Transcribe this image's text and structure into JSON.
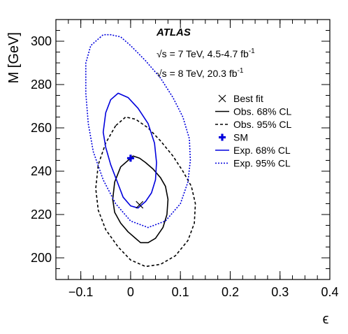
{
  "chart_data": {
    "type": "line",
    "title": "",
    "xlabel": "ϵ",
    "ylabel": "M [GeV]",
    "xlim": [
      -0.15,
      0.4
    ],
    "ylim": [
      190,
      310
    ],
    "xticks": [
      -0.1,
      0,
      0.1,
      0.2,
      0.3,
      0.4
    ],
    "xtick_labels": [
      "−0.1",
      "0",
      "0.1",
      "0.2",
      "0.3",
      "0.4"
    ],
    "yticks": [
      200,
      220,
      240,
      260,
      280,
      300
    ],
    "ytick_labels": [
      "200",
      "220",
      "240",
      "260",
      "280",
      "300"
    ],
    "grid": false,
    "legend_position": "right",
    "annotations": {
      "experiment": "ATLAS",
      "line1_prefix": "√s = 7 TeV, 4.5-4.7 fb",
      "line1_sup": "-1",
      "line2_prefix": "√s = 8 TeV, 20.3 fb",
      "line2_sup": "-1"
    },
    "colors": {
      "observed": "#000000",
      "expected": "#0000dd",
      "sm": "#0000dd"
    },
    "points": [
      {
        "name": "Best fit",
        "x": 0.018,
        "y": 224.5,
        "marker": "x",
        "color": "#000000"
      },
      {
        "name": "SM",
        "x": 0.0,
        "y": 246.0,
        "marker": "plus",
        "color": "#0000dd"
      }
    ],
    "series": [
      {
        "name": "Obs. 68% CL",
        "style": "solid",
        "color": "#000000",
        "x": [
          0.0,
          -0.02,
          -0.032,
          -0.036,
          -0.032,
          -0.02,
          -0.005,
          0.01,
          0.02,
          0.035,
          0.05,
          0.065,
          0.073,
          0.075,
          0.07,
          0.06,
          0.045,
          0.03,
          0.018,
          0.005,
          0.0
        ],
        "y": [
          246,
          242,
          235,
          227,
          221,
          216,
          212,
          209,
          207,
          207,
          209,
          214,
          220,
          227,
          233,
          237,
          241,
          244,
          246,
          247,
          246
        ]
      },
      {
        "name": "Obs. 95% CL",
        "style": "dashed",
        "color": "#000000",
        "x": [
          -0.03,
          -0.05,
          -0.065,
          -0.07,
          -0.065,
          -0.05,
          -0.025,
          0.0,
          0.03,
          0.06,
          0.09,
          0.115,
          0.128,
          0.13,
          0.122,
          0.105,
          0.085,
          0.06,
          0.035,
          0.01,
          -0.01,
          -0.03
        ],
        "y": [
          261,
          253,
          243,
          232,
          222,
          213,
          205,
          199,
          196,
          197,
          201,
          208,
          216,
          225,
          233,
          240,
          247,
          254,
          260,
          264,
          265,
          261
        ]
      },
      {
        "name": "Exp. 68% CL",
        "style": "solid",
        "color": "#0000dd",
        "x": [
          -0.055,
          -0.05,
          -0.04,
          -0.025,
          -0.005,
          0.015,
          0.035,
          0.048,
          0.052,
          0.05,
          0.042,
          0.03,
          0.015,
          0.0,
          -0.015,
          -0.025,
          -0.04,
          -0.05,
          -0.055
        ],
        "y": [
          258,
          267,
          273,
          276,
          274,
          269,
          262,
          253,
          244,
          236,
          230,
          226,
          223,
          224,
          228,
          234,
          243,
          251,
          258
        ]
      },
      {
        "name": "Exp. 95% CL",
        "style": "dotted",
        "color": "#0000dd",
        "x": [
          -0.06,
          -0.08,
          -0.09,
          -0.09,
          -0.085,
          -0.075,
          -0.055,
          -0.03,
          0.0,
          0.035,
          0.07,
          0.1,
          0.115,
          0.12,
          0.118,
          0.105,
          0.085,
          0.06,
          0.03,
          0.0,
          -0.02,
          -0.04,
          -0.055,
          -0.06
        ],
        "y": [
          302,
          298,
          290,
          276,
          262,
          249,
          236,
          225,
          217,
          214,
          217,
          225,
          235,
          245,
          255,
          265,
          274,
          283,
          291,
          298,
          302,
          303,
          303,
          302
        ]
      }
    ],
    "legend": [
      {
        "label": "Best fit",
        "kind": "marker-x",
        "color": "#000000"
      },
      {
        "label": "Obs. 68% CL",
        "kind": "line-solid",
        "color": "#000000"
      },
      {
        "label": "Obs. 95% CL",
        "kind": "line-dashed",
        "color": "#000000"
      },
      {
        "label": "SM",
        "kind": "marker-plus",
        "color": "#0000dd"
      },
      {
        "label": "Exp. 68% CL",
        "kind": "line-solid",
        "color": "#0000dd"
      },
      {
        "label": "Exp. 95% CL",
        "kind": "line-dotted",
        "color": "#0000dd"
      }
    ]
  }
}
